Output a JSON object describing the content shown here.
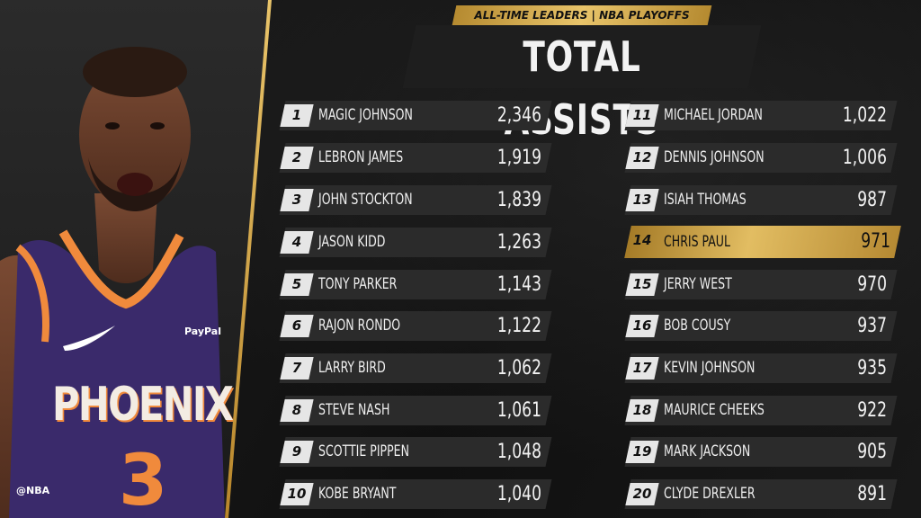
{
  "header": {
    "kicker": "ALL-TIME LEADERS | NBA PLAYOFFS",
    "title": "TOTAL ASSISTS"
  },
  "watermark": "@NBA",
  "colors": {
    "gold": "#e2bd62",
    "row_bg": "#2b2b2b",
    "background": "#141414"
  },
  "leaders": [
    {
      "rank": "1",
      "name": "MAGIC JOHNSON",
      "value": "2,346"
    },
    {
      "rank": "2",
      "name": "LEBRON JAMES",
      "value": "1,919"
    },
    {
      "rank": "3",
      "name": "JOHN STOCKTON",
      "value": "1,839"
    },
    {
      "rank": "4",
      "name": "JASON KIDD",
      "value": "1,263"
    },
    {
      "rank": "5",
      "name": "TONY PARKER",
      "value": "1,143"
    },
    {
      "rank": "6",
      "name": "RAJON RONDO",
      "value": "1,122"
    },
    {
      "rank": "7",
      "name": "LARRY BIRD",
      "value": "1,062"
    },
    {
      "rank": "8",
      "name": "STEVE NASH",
      "value": "1,061"
    },
    {
      "rank": "9",
      "name": "SCOTTIE PIPPEN",
      "value": "1,048"
    },
    {
      "rank": "10",
      "name": "KOBE BRYANT",
      "value": "1,040"
    },
    {
      "rank": "11",
      "name": "MICHAEL JORDAN",
      "value": "1,022"
    },
    {
      "rank": "12",
      "name": "DENNIS JOHNSON",
      "value": "1,006"
    },
    {
      "rank": "13",
      "name": "ISIAH THOMAS",
      "value": "987"
    },
    {
      "rank": "14",
      "name": "CHRIS PAUL",
      "value": "971",
      "highlight": true
    },
    {
      "rank": "15",
      "name": "JERRY WEST",
      "value": "970"
    },
    {
      "rank": "16",
      "name": "BOB COUSY",
      "value": "937"
    },
    {
      "rank": "17",
      "name": "KEVIN JOHNSON",
      "value": "935"
    },
    {
      "rank": "18",
      "name": "MAURICE CHEEKS",
      "value": "922"
    },
    {
      "rank": "19",
      "name": "MARK JACKSON",
      "value": "905"
    },
    {
      "rank": "20",
      "name": "CLYDE DREXLER",
      "value": "891"
    }
  ],
  "player_photo": {
    "jersey_text": "PHOENIX",
    "jersey_number": "3",
    "sponsor": "PayPal",
    "jersey_color": "#3a2a6b",
    "trim_color": "#f08a3c"
  }
}
